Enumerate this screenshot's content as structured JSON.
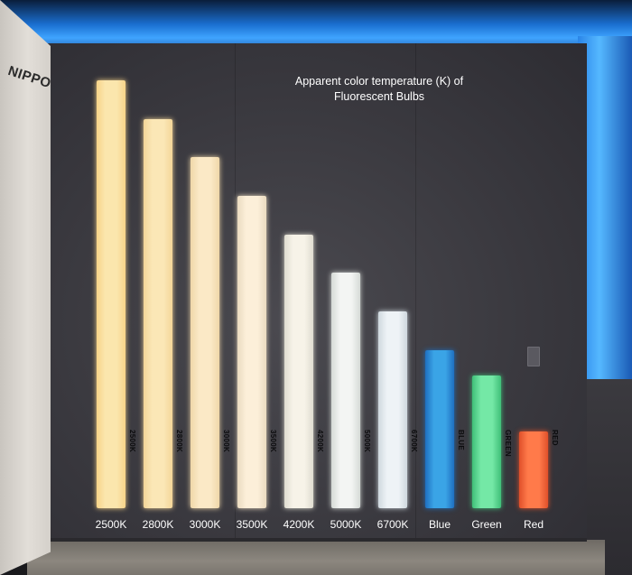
{
  "brand": "NIPPO",
  "title_line1": "Apparent color temperature (K) of",
  "title_line2": "Fluorescent Bulbs",
  "bulbs": [
    {
      "label": "2500K",
      "tube_text": "2500K",
      "height_frac": 1.0,
      "color": "#fbe6ad",
      "glow": "#f7d489"
    },
    {
      "label": "2800K",
      "tube_text": "2800K",
      "height_frac": 0.91,
      "color": "#fbe7b6",
      "glow": "#f3d598"
    },
    {
      "label": "3000K",
      "tube_text": "3000K",
      "height_frac": 0.82,
      "color": "#fbe9c6",
      "glow": "#efd7a9"
    },
    {
      "label": "3500K",
      "tube_text": "3500K",
      "height_frac": 0.73,
      "color": "#fcefd9",
      "glow": "#eadbc0"
    },
    {
      "label": "4200K",
      "tube_text": "4200K",
      "height_frac": 0.64,
      "color": "#f7f3e8",
      "glow": "#dfdcd0"
    },
    {
      "label": "5000K",
      "tube_text": "5000K",
      "height_frac": 0.55,
      "color": "#f3f5f3",
      "glow": "#d5dad6"
    },
    {
      "label": "6700K",
      "tube_text": "6700K",
      "height_frac": 0.46,
      "color": "#eef3f6",
      "glow": "#cfd8de"
    },
    {
      "label": "Blue",
      "tube_text": "BLUE",
      "height_frac": 0.37,
      "color": "#3aa4e6",
      "glow": "#1f6fc0"
    },
    {
      "label": "Green",
      "tube_text": "GREEN",
      "height_frac": 0.31,
      "color": "#74e8a6",
      "glow": "#3fbf78"
    },
    {
      "label": "Red",
      "tube_text": "RED",
      "height_frac": 0.18,
      "color": "#ff7a4a",
      "glow": "#e0502a"
    }
  ]
}
